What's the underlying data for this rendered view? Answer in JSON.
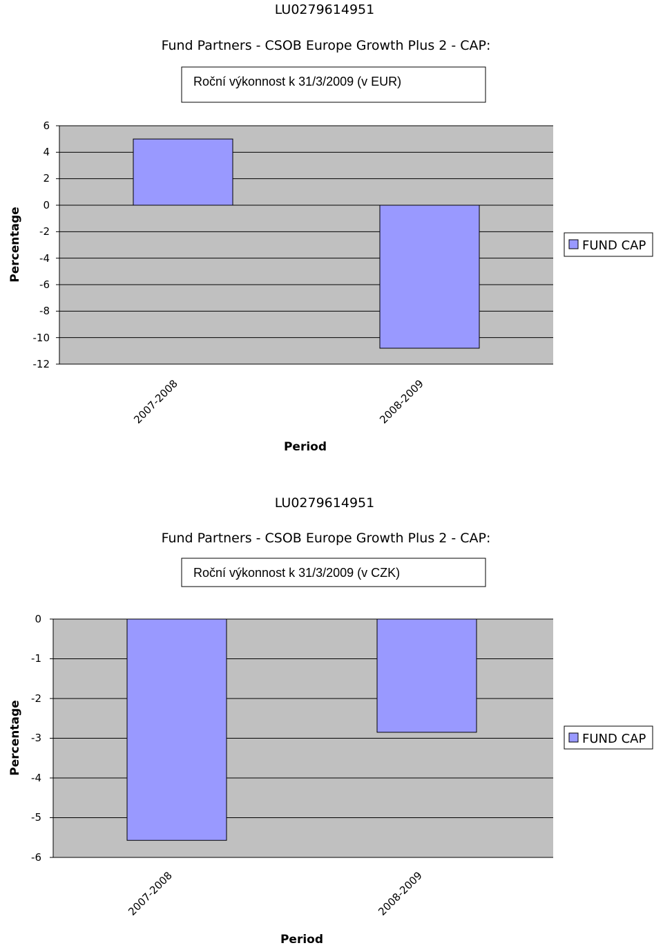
{
  "chart_data": [
    {
      "type": "bar",
      "isin": "LU0279614951",
      "fund_title": "Fund Partners - CSOB Europe Growth Plus 2 - CAP:",
      "title": "Roční výkonnost k 31/3/2009 (v EUR)",
      "xlabel": "Period",
      "ylabel": "Percentage",
      "categories": [
        "2007-2008",
        "2008-2009"
      ],
      "series": [
        {
          "name": "FUND CAP",
          "values": [
            5.0,
            -10.8
          ]
        }
      ],
      "ylim": [
        -12,
        6
      ],
      "yticks": [
        "6",
        "4",
        "2",
        "0",
        "-2",
        "-4",
        "-6",
        "-8",
        "-10",
        "-12"
      ],
      "grid": true,
      "legend": "right",
      "colors": {
        "bar": "#9999ff",
        "plot_bg": "#c0c0c0",
        "grid": "#000000"
      }
    },
    {
      "type": "bar",
      "isin": "LU0279614951",
      "fund_title": "Fund Partners - CSOB Europe Growth Plus 2 - CAP:",
      "title": "Roční výkonnost k 31/3/2009 (v CZK)",
      "xlabel": "Period",
      "ylabel": "Percentage",
      "categories": [
        "2007-2008",
        "2008-2009"
      ],
      "series": [
        {
          "name": "FUND CAP",
          "values": [
            -5.57,
            -2.85
          ]
        }
      ],
      "ylim": [
        -6,
        0
      ],
      "yticks": [
        "0",
        "-1",
        "-2",
        "-3",
        "-4",
        "-5",
        "-6"
      ],
      "grid": true,
      "legend": "right",
      "colors": {
        "bar": "#9999ff",
        "plot_bg": "#c0c0c0",
        "grid": "#000000"
      }
    }
  ]
}
